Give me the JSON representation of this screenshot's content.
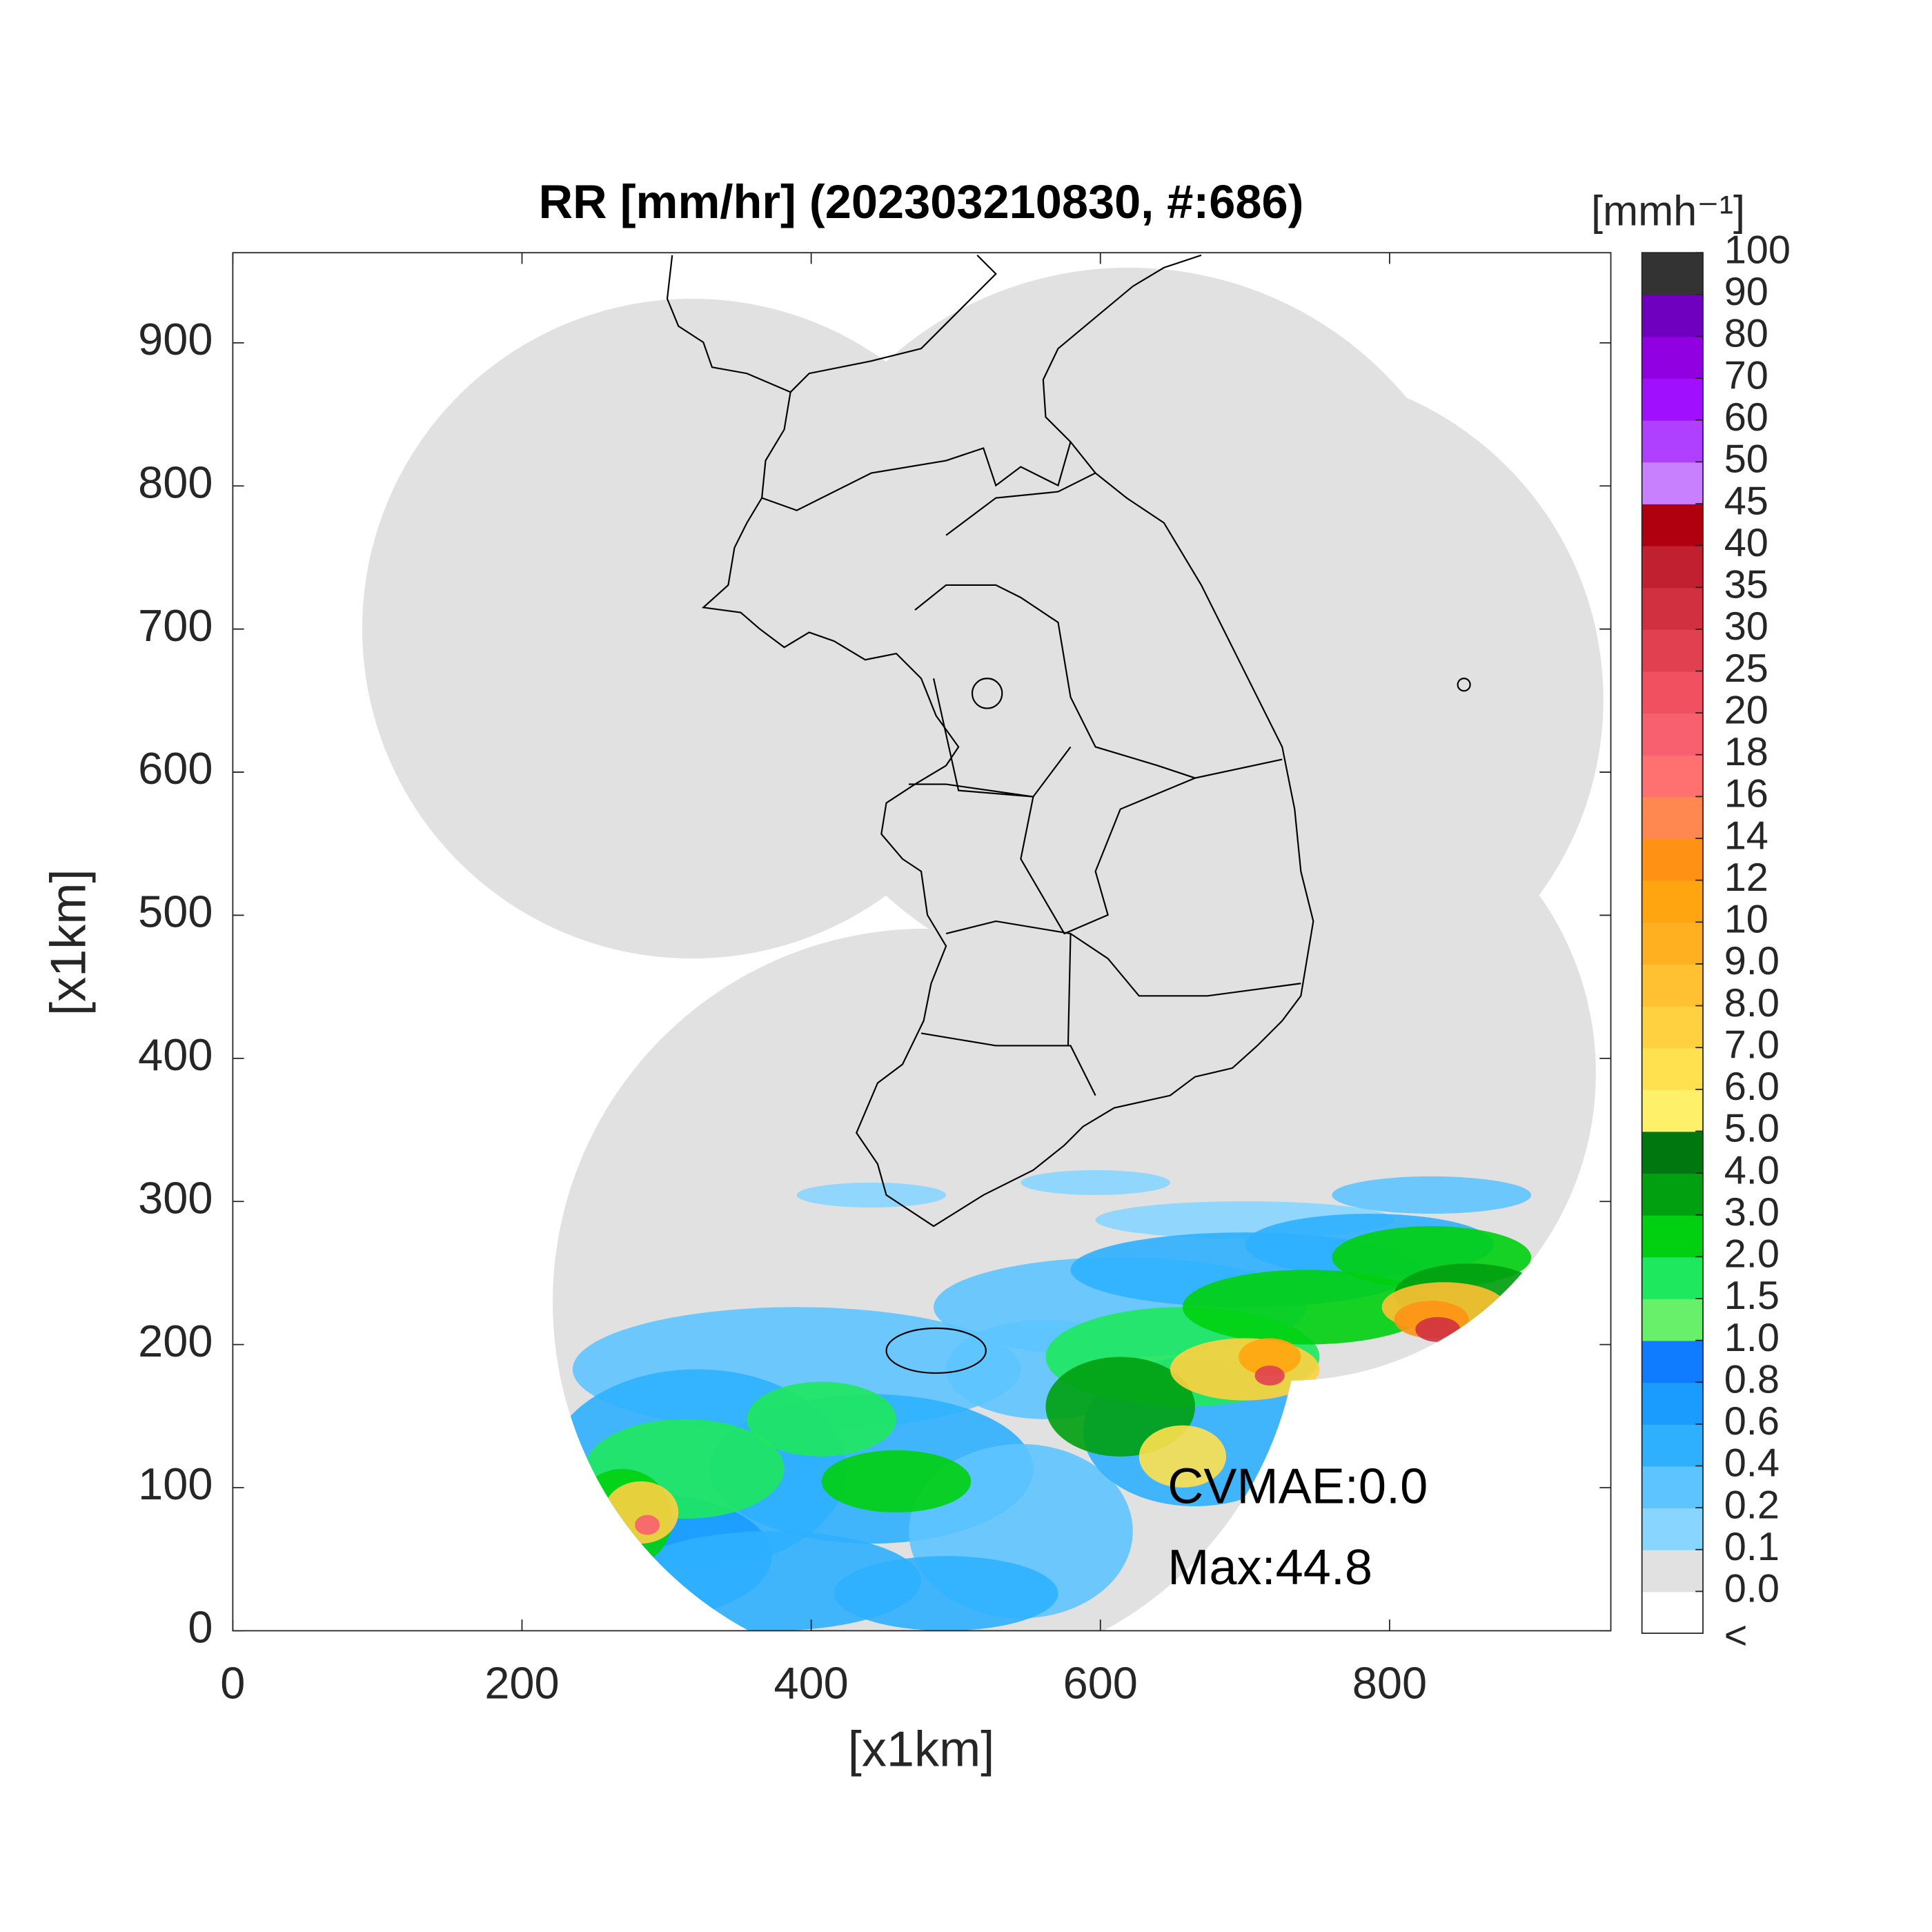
{
  "chart_data": {
    "type": "radar-map",
    "title": "RR [mm/hr] (202303210830, #:686)",
    "xlabel": "[x1km]",
    "ylabel": "[x1km]",
    "xlim": [
      0,
      953
    ],
    "ylim": [
      0,
      963
    ],
    "xticks": [
      0,
      200,
      400,
      600,
      800
    ],
    "yticks": [
      0,
      100,
      200,
      300,
      400,
      500,
      600,
      700,
      800,
      900
    ],
    "annotations": [
      "CVMAE:0.0",
      "Max:44.8"
    ],
    "colorbar": {
      "label": "[mmh⁻¹]",
      "under_label": "<",
      "ticks": [
        {
          "value": 0,
          "label": "0.0"
        },
        0.1,
        0.2,
        0.4,
        0.6,
        0.8,
        {
          "value": 1,
          "label": "1.0"
        },
        1.5,
        {
          "value": 2,
          "label": "2.0"
        },
        {
          "value": 3,
          "label": "3.0"
        },
        {
          "value": 4,
          "label": "4.0"
        },
        {
          "value": 5,
          "label": "5.0"
        },
        {
          "value": 6,
          "label": "6.0"
        },
        {
          "value": 7,
          "label": "7.0"
        },
        {
          "value": 8,
          "label": "8.0"
        },
        {
          "value": 9,
          "label": "9.0"
        },
        10,
        12,
        14,
        16,
        18,
        20,
        25,
        30,
        35,
        40,
        45,
        50,
        60,
        70,
        80,
        90,
        100
      ],
      "colors": [
        "#ffffff",
        "#e1e1e1",
        "#88d5ff",
        "#5ec4ff",
        "#2fb0ff",
        "#1a9cff",
        "#0f7cff",
        "#69f06b",
        "#1ee85e",
        "#00d010",
        "#00a010",
        "#007810",
        "#fff06a",
        "#ffe04e",
        "#ffd040",
        "#ffc032",
        "#ffb020",
        "#ffa510",
        "#ff9215",
        "#ff8850",
        "#ff7070",
        "#f86070",
        "#f05060",
        "#e04050",
        "#d03040",
        "#c02030",
        "#b00010",
        "#c880ff",
        "#b040ff",
        "#a010ff",
        "#9000e0",
        "#7000c0",
        "#333333"
      ]
    }
  }
}
